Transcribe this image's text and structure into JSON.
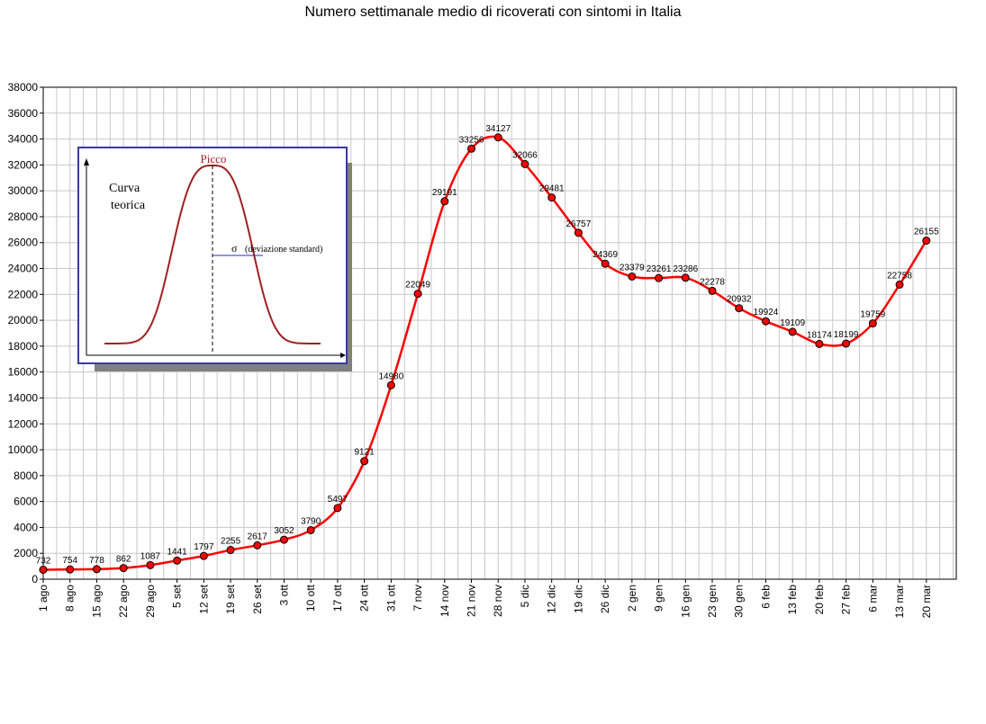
{
  "chart_data": {
    "type": "line",
    "title": "Numero settimanale medio di ricoverati con sintomi in Italia",
    "xlabel": "",
    "ylabel": "",
    "ylim": [
      0,
      38000
    ],
    "y_tick_step": 2000,
    "grid": true,
    "legend": "none",
    "line_color": "#ff0000",
    "marker_color": "#ff0000",
    "categories": [
      "1 ago",
      "8 ago",
      "15 ago",
      "22 ago",
      "29 ago",
      "5 set",
      "12 set",
      "19 set",
      "26 set",
      "3 ott",
      "10 ott",
      "17 ott",
      "24 ott",
      "31 ott",
      "7 nov",
      "14 nov",
      "21 nov",
      "28 nov",
      "5 dic",
      "12 dic",
      "19 dic",
      "26 dic",
      "2 gen",
      "9 gen",
      "16 gen",
      "23 gen",
      "30 gen",
      "6 feb",
      "13 feb",
      "20 feb",
      "27 feb",
      "6 mar",
      "13 mar",
      "20 mar"
    ],
    "series": [
      {
        "values": [
          732,
          754,
          778,
          862,
          1087,
          1441,
          1797,
          2255,
          2617,
          3052,
          3790,
          5497,
          9121,
          14980,
          22049,
          29191,
          33256,
          34127,
          32066,
          29481,
          26757,
          24369,
          23379,
          23261,
          23286,
          22278,
          20932,
          19924,
          19109,
          18174,
          18199,
          19759,
          22758,
          26155
        ]
      }
    ]
  },
  "inset": {
    "peak_label": "Picco",
    "curve_label_line1": "Curva",
    "curve_label_line2": "teorica",
    "sigma_symbol": "σ",
    "sigma_label": "(deviazione standard)"
  }
}
